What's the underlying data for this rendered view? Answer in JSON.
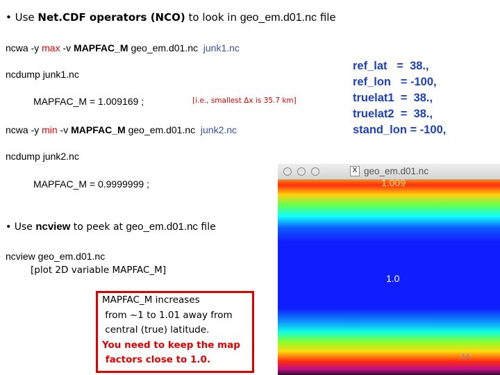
{
  "slide": {
    "bullet1": [
      "• Use ",
      "Net.CDF operators (NCO)",
      " to look in ",
      "geo_em.d01.nc",
      " file"
    ],
    "cmd1": [
      "ncwa -y ",
      "max",
      " -v ",
      "MAPFAC_M",
      " geo_em.d01.nc  ",
      "junk1.nc"
    ],
    "dump1": "ncdump junk1.nc",
    "result1": "MAPFAC_M = 1.009169 ;",
    "note1": "[i.e., smallest Δx is 35.7 km]",
    "cmd2": [
      "ncwa -y ",
      "min",
      " -v ",
      "MAPFAC_M",
      " geo_em.d01.nc  ",
      "junk2.nc"
    ],
    "dump2": "ncdump junk2.nc",
    "result2": "MAPFAC_M = 0.9999999 ;",
    "bullet2": [
      "• Use ",
      "ncview",
      " to peek at ",
      "geo_em.d01.nc",
      " file"
    ],
    "ncview_cmd": "ncview geo_em.d01.nc",
    "ncview_note": "[plot 2D variable MAPFAC_M]",
    "box_lines": [
      "MAPFAC_M increases",
      " from ~1 to 1.01 away from",
      " central (true) latitude."
    ],
    "box_warning": [
      "You need to keep the map",
      " factors close to 1.0."
    ],
    "namelist": [
      "ref_lat   =  38.,",
      "ref_lon   = -100,",
      "truelat1  =  38.,",
      "truelat2  =  38.,",
      "stand_lon = -100,"
    ],
    "window": {
      "title": "geo_em.d01.nc",
      "label_top": "1.009",
      "label_center": "1.0"
    },
    "page_number": "14"
  }
}
